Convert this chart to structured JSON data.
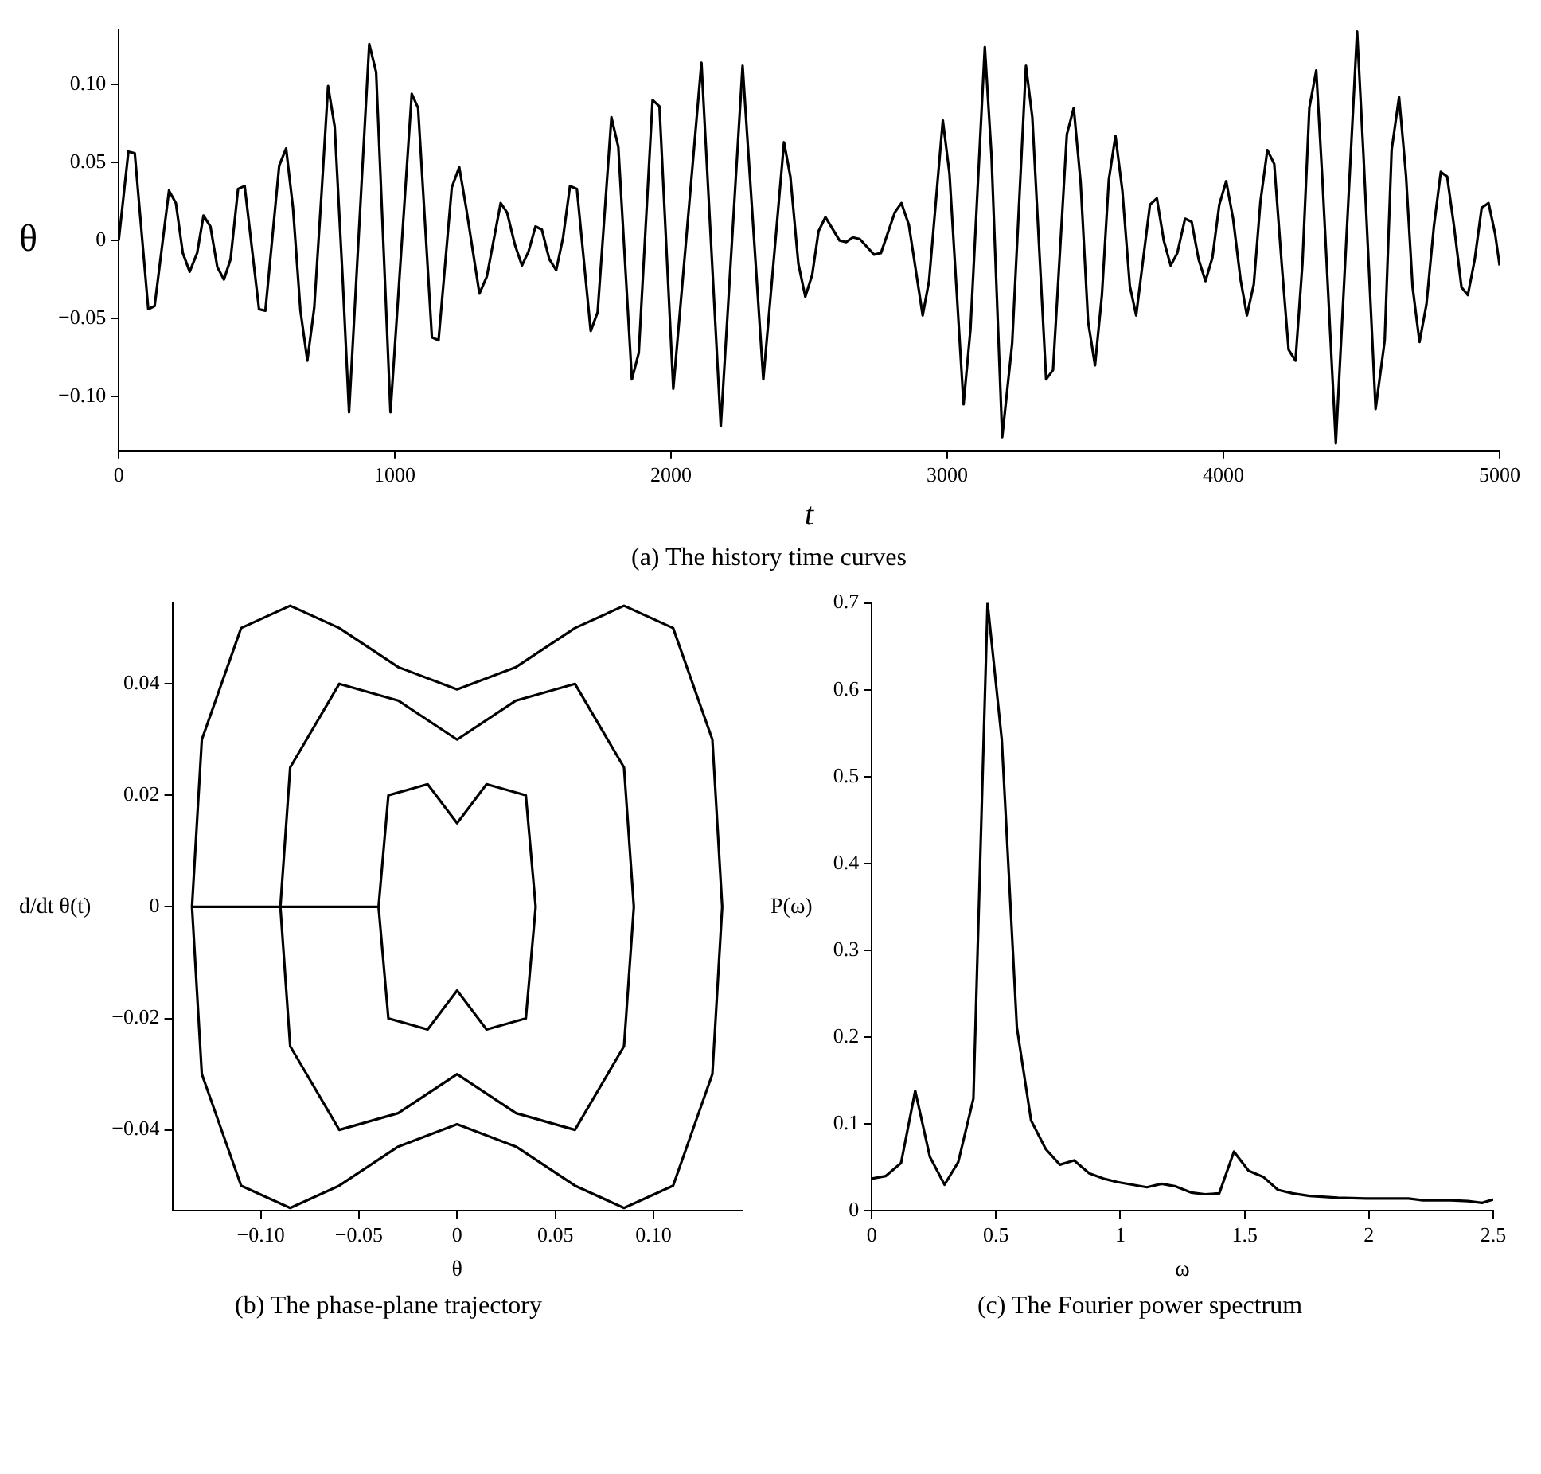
{
  "chart_data": [
    {
      "type": "line",
      "xlabel": "t",
      "ylabel": "θ",
      "color": "#000000",
      "annotations": [
        "(a) The history time curves"
      ],
      "xlim": [
        0,
        5000
      ],
      "xticks": [
        0,
        1000,
        2000,
        3000,
        4000,
        5000
      ],
      "ylim": [
        -0.135,
        0.135
      ],
      "yticks": [
        {
          "value": -0.1,
          "label": "−0.10"
        },
        {
          "value": -0.05,
          "label": "−0.05"
        },
        0,
        {
          "value": 0.05,
          "label": "0.05"
        },
        {
          "value": 0.1,
          "label": "0.10"
        }
      ],
      "x": [
        0,
        35,
        58,
        107,
        130,
        182,
        207,
        232,
        257,
        284,
        307,
        332,
        357,
        381,
        405,
        432,
        456,
        508,
        531,
        581,
        606,
        631,
        658,
        683,
        708,
        735,
        758,
        782,
        811,
        834,
        907,
        932,
        984,
        1061,
        1084,
        1134,
        1158,
        1206,
        1233,
        1258,
        1306,
        1333,
        1383,
        1406,
        1435,
        1460,
        1484,
        1509,
        1532,
        1559,
        1584,
        1609,
        1634,
        1659,
        1709,
        1734,
        1784,
        1809,
        1858,
        1883,
        1933,
        1958,
        2008,
        2110,
        2180,
        2259,
        2334,
        2409,
        2432,
        2461,
        2486,
        2511,
        2534,
        2559,
        2610,
        2634,
        2658,
        2683,
        2735,
        2760,
        2810,
        2834,
        2861,
        2911,
        2934,
        2984,
        3008,
        3059,
        3084,
        3136,
        3160,
        3199,
        3235,
        3285,
        3308,
        3358,
        3383,
        3433,
        3458,
        3483,
        3510,
        3535,
        3560,
        3585,
        3609,
        3634,
        3661,
        3684,
        3734,
        3759,
        3784,
        3809,
        3833,
        3861,
        3885,
        3910,
        3935,
        3960,
        3985,
        4010,
        4035,
        4062,
        4085,
        4110,
        4134,
        4159,
        4184,
        4211,
        4236,
        4261,
        4286,
        4311,
        4336,
        4359,
        4407,
        4484,
        4507,
        4551,
        4584,
        4609,
        4636,
        4661,
        4685,
        4710,
        4735,
        4762,
        4787,
        4810,
        4835,
        4862,
        4885,
        4910,
        4935,
        4960,
        4984,
        5000
      ],
      "values": [
        0,
        0.057,
        0.056,
        -0.044,
        -0.042,
        0.032,
        0.024,
        -0.008,
        -0.02,
        -0.008,
        0.016,
        0.009,
        -0.017,
        -0.025,
        -0.012,
        0.033,
        0.035,
        -0.044,
        -0.045,
        0.048,
        0.059,
        0.021,
        -0.045,
        -0.077,
        -0.043,
        0.032,
        0.099,
        0.073,
        -0.025,
        -0.11,
        0.126,
        0.108,
        -0.11,
        0.094,
        0.085,
        -0.062,
        -0.064,
        0.034,
        0.047,
        0.021,
        -0.034,
        -0.023,
        0.024,
        0.018,
        -0.003,
        -0.016,
        -0.007,
        0.009,
        0.007,
        -0.012,
        -0.019,
        0.002,
        0.035,
        0.033,
        -0.058,
        -0.046,
        0.079,
        0.06,
        -0.089,
        -0.072,
        0.09,
        0.086,
        -0.095,
        0.114,
        -0.119,
        0.112,
        -0.089,
        0.063,
        0.041,
        -0.015,
        -0.036,
        -0.022,
        0.006,
        0.015,
        0,
        -0.001,
        0.002,
        0.001,
        -0.009,
        -0.008,
        0.018,
        0.024,
        0.01,
        -0.048,
        -0.026,
        0.077,
        0.043,
        -0.105,
        -0.057,
        0.124,
        0.055,
        -0.126,
        -0.066,
        0.112,
        0.079,
        -0.089,
        -0.083,
        0.068,
        0.085,
        0.037,
        -0.052,
        -0.08,
        -0.035,
        0.039,
        0.067,
        0.032,
        -0.029,
        -0.048,
        0.023,
        0.027,
        0,
        -0.016,
        -0.008,
        0.014,
        0.012,
        -0.012,
        -0.026,
        -0.011,
        0.023,
        0.038,
        0.014,
        -0.025,
        -0.048,
        -0.028,
        0.025,
        0.058,
        0.049,
        -0.015,
        -0.07,
        -0.077,
        -0.015,
        0.085,
        0.109,
        0.037,
        -0.13,
        0.134,
        0.055,
        -0.108,
        -0.064,
        0.058,
        0.092,
        0.042,
        -0.03,
        -0.065,
        -0.041,
        0.009,
        0.044,
        0.041,
        0.009,
        -0.03,
        -0.035,
        -0.012,
        0.021,
        0.024,
        0.004,
        -0.016
      ]
    },
    {
      "type": "line",
      "xlabel": "θ",
      "ylabel": "d/dt θ(t)",
      "color": "#000000",
      "annotations": [
        "(b) The phase-plane trajectory"
      ],
      "xlim": [
        -0.145,
        0.145
      ],
      "xticks": [
        {
          "value": -0.1,
          "label": "−0.10"
        },
        {
          "value": -0.05,
          "label": "−0.05"
        },
        0,
        {
          "value": 0.05,
          "label": "0.05"
        },
        {
          "value": 0.1,
          "label": "0.10"
        }
      ],
      "ylim": [
        -0.0545,
        0.0545
      ],
      "yticks": [
        {
          "value": -0.04,
          "label": "−0.04"
        },
        {
          "value": -0.02,
          "label": "−0.02"
        },
        0,
        0.02,
        0.04
      ],
      "x": [
        -0.135,
        -0.13,
        -0.11,
        -0.085,
        -0.06,
        -0.03,
        0,
        0.03,
        0.06,
        0.085,
        0.11,
        0.13,
        0.135,
        0.13,
        0.11,
        0.085,
        0.06,
        0.03,
        0,
        -0.03,
        -0.06,
        -0.085,
        -0.11,
        -0.13,
        -0.135,
        -0.09,
        -0.085,
        -0.06,
        -0.03,
        0,
        0.03,
        0.06,
        0.085,
        0.09,
        0.085,
        0.06,
        0.03,
        0,
        -0.03,
        -0.06,
        -0.085,
        -0.09,
        -0.04,
        -0.035,
        -0.015,
        0,
        0.015,
        0.035,
        0.04,
        0.035,
        0.015,
        0,
        -0.015,
        -0.035,
        -0.04
      ],
      "values": [
        0,
        0.03,
        0.05,
        0.054,
        0.05,
        0.043,
        0.039,
        0.043,
        0.05,
        0.054,
        0.05,
        0.03,
        0,
        -0.03,
        -0.05,
        -0.054,
        -0.05,
        -0.043,
        -0.039,
        -0.043,
        -0.05,
        -0.054,
        -0.05,
        -0.03,
        0,
        0,
        0.025,
        0.04,
        0.037,
        0.03,
        0.037,
        0.04,
        0.025,
        0,
        -0.025,
        -0.04,
        -0.037,
        -0.03,
        -0.037,
        -0.04,
        -0.025,
        0,
        0,
        0.02,
        0.022,
        0.015,
        0.022,
        0.02,
        0,
        -0.02,
        -0.022,
        -0.015,
        -0.022,
        -0.02,
        0
      ]
    },
    {
      "type": "line",
      "xlabel": "ω",
      "ylabel": "P(ω)",
      "color": "#000000",
      "annotations": [
        "(c) The Fourier power spectrum"
      ],
      "xlim": [
        0,
        2.5
      ],
      "xticks": [
        0,
        0.5,
        1,
        1.5,
        2,
        2.5
      ],
      "ylim": [
        0,
        0.7
      ],
      "yticks": [
        0,
        0.1,
        0.2,
        0.3,
        0.4,
        0.5,
        0.6,
        0.7
      ],
      "x": [
        0,
        0.057,
        0.118,
        0.175,
        0.234,
        0.293,
        0.348,
        0.409,
        0.466,
        0.523,
        0.584,
        0.641,
        0.7,
        0.757,
        0.814,
        0.875,
        0.932,
        0.989,
        1.048,
        1.107,
        1.166,
        1.223,
        1.284,
        1.341,
        1.398,
        1.457,
        1.516,
        1.575,
        1.634,
        1.693,
        1.761,
        1.875,
        1.989,
        2.159,
        2.216,
        2.33,
        2.398,
        2.455,
        2.5
      ],
      "values": [
        0.037,
        0.04,
        0.055,
        0.138,
        0.062,
        0.03,
        0.056,
        0.129,
        0.7,
        0.543,
        0.211,
        0.104,
        0.071,
        0.053,
        0.058,
        0.043,
        0.037,
        0.033,
        0.03,
        0.027,
        0.031,
        0.028,
        0.021,
        0.019,
        0.02,
        0.068,
        0.046,
        0.039,
        0.024,
        0.02,
        0.017,
        0.015,
        0.014,
        0.014,
        0.012,
        0.012,
        0.011,
        0.009,
        0.013
      ]
    }
  ]
}
